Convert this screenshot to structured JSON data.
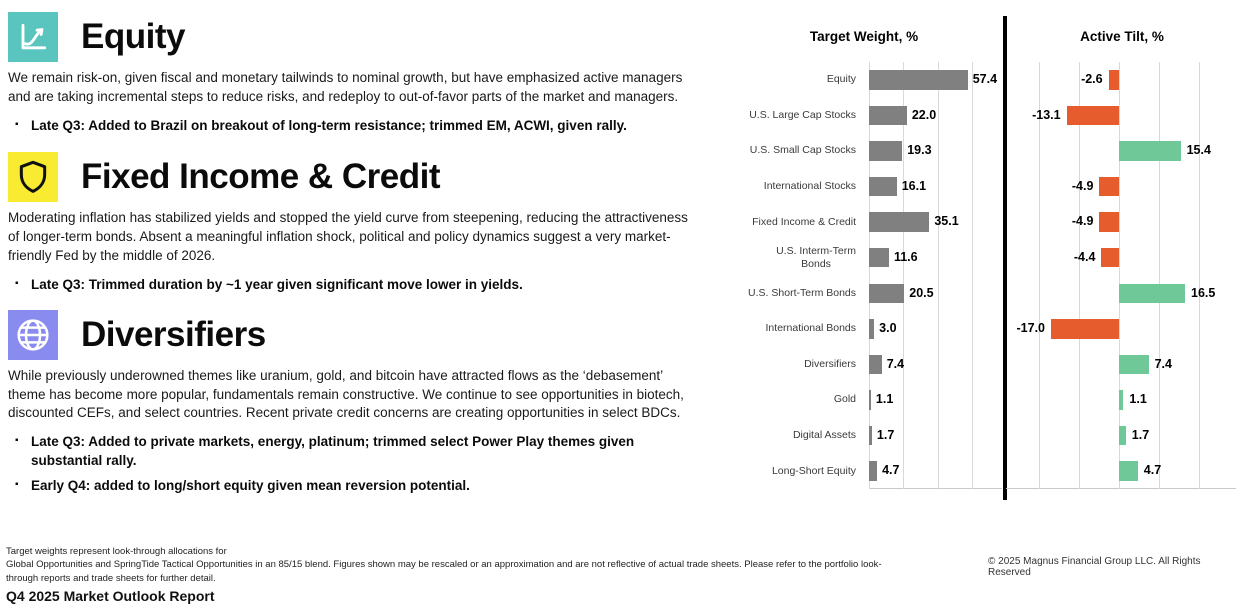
{
  "sections": [
    {
      "title": "Equity",
      "icon": "line-chart-icon",
      "icon_bg": "#5AC5BF",
      "body": "We remain risk-on, given fiscal and monetary tailwinds to nominal growth, but have emphasized active managers and are taking incremental steps to reduce risks, and redeploy to out-of-favor parts of the market and managers.",
      "bullets": [
        "Late Q3: Added to Brazil on breakout of long-term resistance; trimmed EM, ACWI, given rally."
      ]
    },
    {
      "title": "Fixed Income & Credit",
      "icon": "shield-icon",
      "icon_bg": "#F8EB31",
      "body": "Moderating inflation has stabilized yields and stopped the yield curve from steepening, reducing the attractiveness of longer-term bonds. Absent a meaningful inflation shock, political and policy dynamics suggest a very market-friendly Fed by the middle of 2026.",
      "bullets": [
        "Late Q3: Trimmed duration by ~1 year given significant move lower in yields."
      ]
    },
    {
      "title": "Diversifiers",
      "icon": "globe-icon",
      "icon_bg": "#8A8BEF",
      "body": "While previously underowned themes like uranium, gold, and bitcoin have attracted flows as the ‘debasement’ theme has become more popular, fundamentals remain constructive. We continue to see opportunities in biotech, discounted CEFs, and select countries. Recent private credit concerns are creating opportunities in select BDCs.",
      "bullets": [
        "Late Q3: Added to private markets, energy, platinum; trimmed select Power Play themes given substantial rally.",
        "Early Q4: added to long/short equity given mean reversion potential."
      ]
    }
  ],
  "icons": {
    "bullet": "▪"
  },
  "chart_data": [
    {
      "type": "bar",
      "orientation": "horizontal",
      "title": "Target Weight, %",
      "categories": [
        "Equity",
        "U.S. Large Cap Stocks",
        "U.S. Small Cap Stocks",
        "International Stocks",
        "Fixed Income & Credit",
        "U.S. Interm-Term\nBonds",
        "U.S. Short-Term Bonds",
        "International Bonds",
        "Diversifiers",
        "Gold",
        "Digital Assets",
        "Long-Short Equity"
      ],
      "values": [
        57.4,
        22.0,
        19.3,
        16.1,
        35.1,
        11.6,
        20.5,
        3.0,
        7.4,
        1.1,
        1.7,
        4.7
      ],
      "xlim": [
        0,
        70
      ],
      "gridlines": [
        0,
        20,
        40,
        60
      ],
      "bar_color": "#808080",
      "grid_color": "#d9d9d9",
      "legend": "none"
    },
    {
      "type": "bar",
      "orientation": "horizontal",
      "title": "Active Tilt, %",
      "categories": [
        "Equity",
        "U.S. Large Cap Stocks",
        "U.S. Small Cap Stocks",
        "International Stocks",
        "Fixed Income & Credit",
        "U.S. Interm-Term\nBonds",
        "U.S. Short-Term Bonds",
        "International Bonds",
        "Diversifiers",
        "Gold",
        "Digital Assets",
        "Long-Short Equity"
      ],
      "values": [
        -2.6,
        -13.1,
        15.4,
        -4.9,
        -4.9,
        -4.4,
        16.5,
        -17.0,
        7.4,
        1.1,
        1.7,
        4.7
      ],
      "xlim": [
        -25,
        25
      ],
      "gridlines": [
        -20,
        -10,
        0,
        10,
        20
      ],
      "positive_color": "#6EC897",
      "negative_color": "#E75C2D",
      "grid_color": "#d9d9d9",
      "legend": "none"
    }
  ],
  "footer": {
    "footnote_lines": [
      "Target weights represent look-through allocations for",
      "Global Opportunities and SpringTide Tactical Opportunities in an 85/15 blend. Figures shown may be rescaled or an approximation and are not reflective of actual trade sheets. Please refer to the portfolio look-through reports and trade sheets for further detail."
    ],
    "copyright": "© 2025 Magnus Financial Group LLC. All Rights Reserved",
    "clipped_line": "Q4 2025 Market Outlook Report"
  }
}
